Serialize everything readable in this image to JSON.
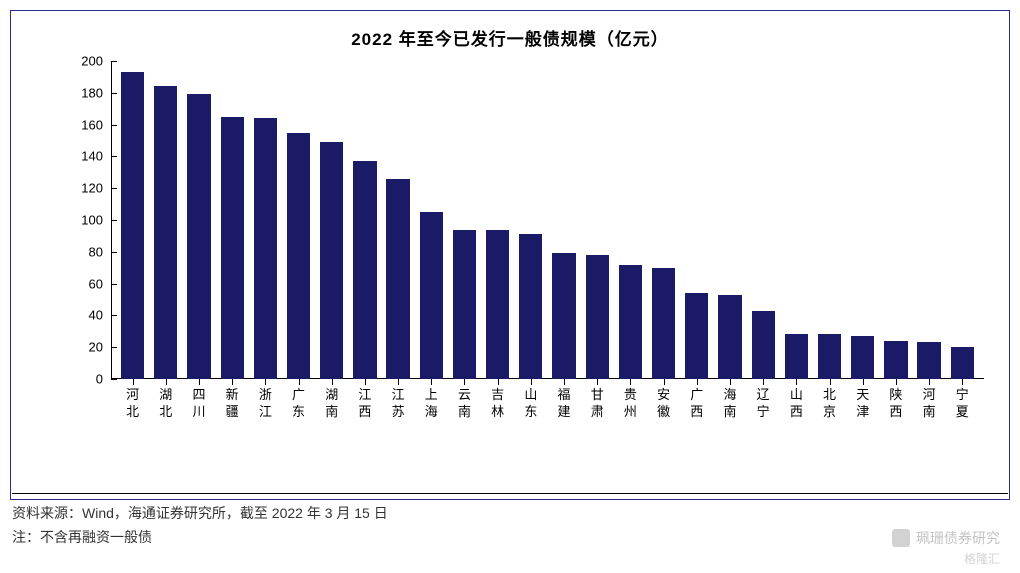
{
  "chart": {
    "type": "bar",
    "title": "2022 年至今已发行一般债规模（亿元）",
    "title_fontsize": 17,
    "title_fontweight": "bold",
    "categories": [
      "河北",
      "湖北",
      "四川",
      "新疆",
      "浙江",
      "广东",
      "湖南",
      "江西",
      "江苏",
      "上海",
      "云南",
      "吉林",
      "山东",
      "福建",
      "甘肃",
      "贵州",
      "安徽",
      "广西",
      "海南",
      "辽宁",
      "山西",
      "北京",
      "天津",
      "陕西",
      "河南",
      "宁夏"
    ],
    "values": [
      193,
      184,
      179,
      165,
      164,
      155,
      149,
      137,
      126,
      105,
      94,
      94,
      91,
      79,
      78,
      72,
      70,
      54,
      53,
      43,
      28,
      28,
      27,
      24,
      23,
      20
    ],
    "bar_color": "#1a1a66",
    "border_color": "#2a2a8a",
    "background_color": "#ffffff",
    "text_color": "#000000",
    "axis_color": "#000000",
    "yaxis": {
      "min": 0,
      "max": 200,
      "step": 20,
      "fontsize": 13
    },
    "xaxis": {
      "fontsize": 13,
      "label_vertical": true
    },
    "bar_width_ratio": 0.7
  },
  "footer": {
    "source": "资料来源：Wind，海通证券研究所，截至 2022 年 3 月 15 日",
    "note": "注：不含再融资一般债",
    "fontsize": 14,
    "color": "#333333"
  },
  "watermark": {
    "text1": "珮珊债券研究",
    "text2": "格隆汇",
    "color": "rgba(180,180,180,0.8)"
  }
}
